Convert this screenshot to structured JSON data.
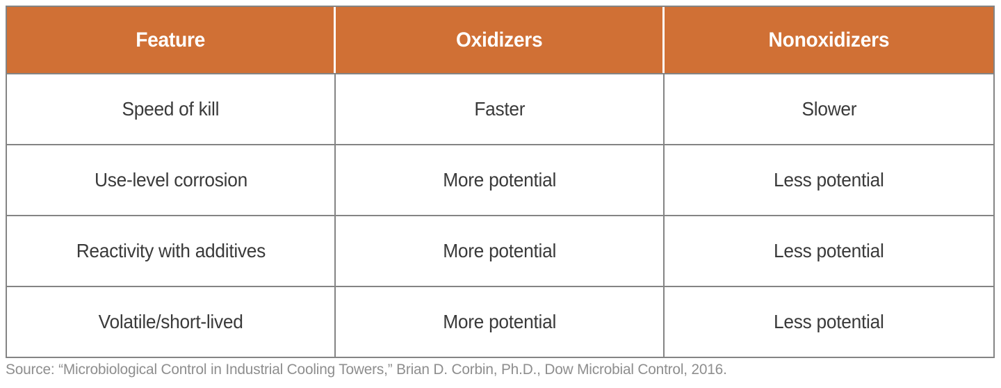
{
  "colors": {
    "header_bg": "#D07035",
    "header_text": "#FFFFFF",
    "border": "#848484",
    "body_text": "#3A3A3A",
    "source_text": "#8E8E8E"
  },
  "table": {
    "columns": [
      "Feature",
      "Oxidizers",
      "Nonoxidizers"
    ],
    "rows": [
      {
        "feature": "Speed of kill",
        "oxidizers": "Faster",
        "nonoxidizers": "Slower"
      },
      {
        "feature": "Use-level corrosion",
        "oxidizers": "More potential",
        "nonoxidizers": "Less potential"
      },
      {
        "feature": "Reactivity with additives",
        "oxidizers": "More potential",
        "nonoxidizers": "Less potential"
      },
      {
        "feature": "Volatile/short-lived",
        "oxidizers": "More potential",
        "nonoxidizers": "Less potential"
      }
    ]
  },
  "source": "Source: “Microbiological Control in Industrial Cooling Towers,” Brian D. Corbin, Ph.D., Dow Microbial Control, 2016."
}
